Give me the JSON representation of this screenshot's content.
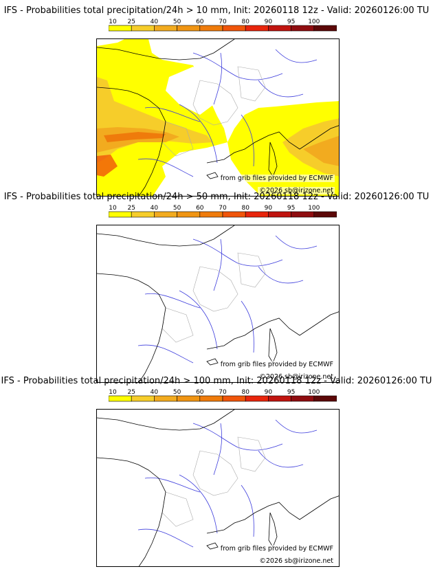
{
  "colorbar": {
    "ticks": [
      "10",
      "25",
      "40",
      "50",
      "60",
      "70",
      "80",
      "90",
      "95",
      "100"
    ],
    "colors": [
      "#ffff00",
      "#f6cd2a",
      "#f2ab1f",
      "#f09513",
      "#ef7b0b",
      "#f0550a",
      "#e8250c",
      "#c0140f",
      "#8f0d10",
      "#5c0808"
    ]
  },
  "panels": [
    {
      "title": "IFS - Probabilities total precipitation/24h > 10 mm, Init: 20260118 12z - Valid: 20260126:00 TU",
      "credit_source": "from grib files provided by ECMWF",
      "credit_copyright": "©2026 sb@irizone.net"
    },
    {
      "title": "IFS - Probabilities total precipitation/24h > 50 mm, Init: 20260118 12z - Valid: 20260126:00 TU",
      "credit_source": "from grib files provided by ECMWF",
      "credit_copyright": "©2026 sb@irizone.net"
    },
    {
      "title": "IFS - Probabilities total precipitation/24h > 100 mm, Init: 20260118 12z - Valid: 20260126:00 TU",
      "credit_source": "from grib files provided by ECMWF",
      "credit_copyright": "©2026 sb@irizone.net"
    }
  ]
}
